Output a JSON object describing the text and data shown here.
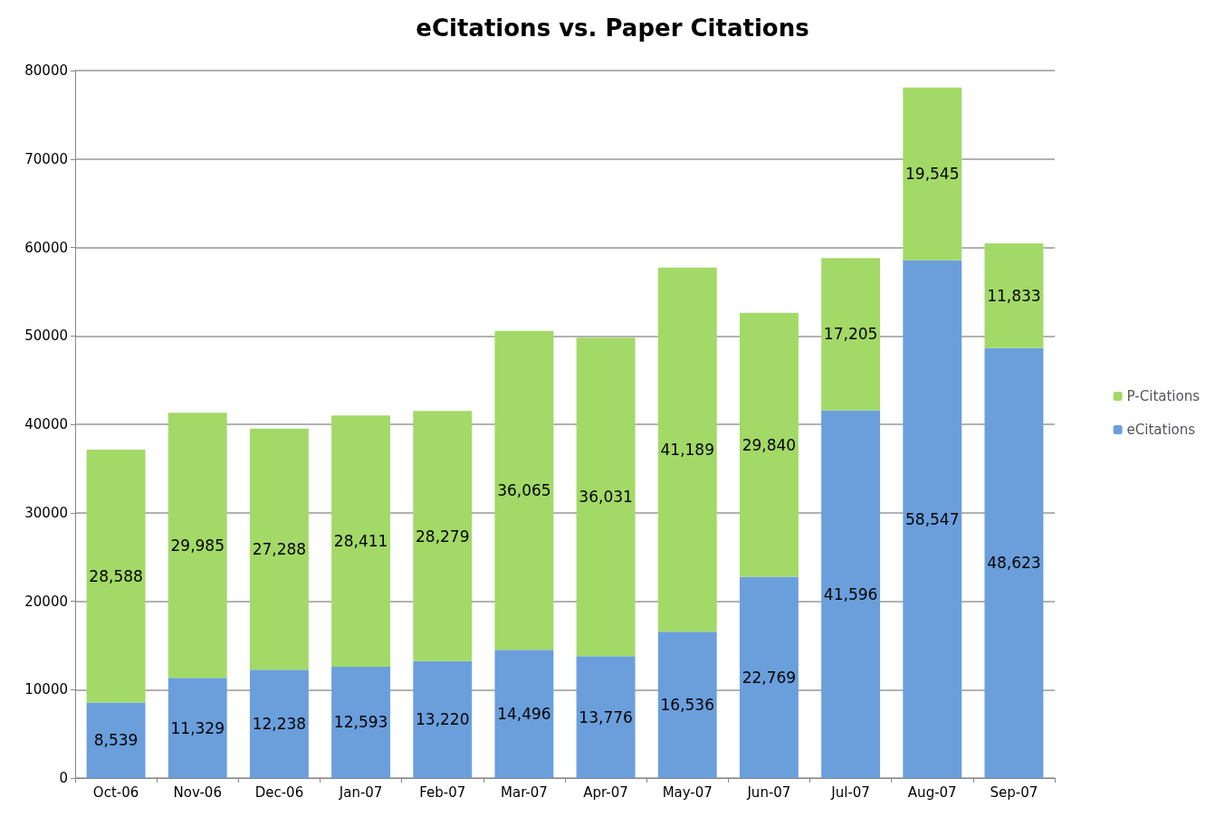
{
  "chart_data": {
    "type": "bar",
    "title": "eCitations vs. Paper Citations",
    "stacked": true,
    "categories": [
      "Oct-06",
      "Nov-06",
      "Dec-06",
      "Jan-07",
      "Feb-07",
      "Mar-07",
      "Apr-07",
      "May-07",
      "Jun-07",
      "Jul-07",
      "Aug-07",
      "Sep-07"
    ],
    "series": [
      {
        "name": "eCitations",
        "color": "#6a9fdc",
        "values": [
          8539,
          11329,
          12238,
          12593,
          13220,
          14496,
          13776,
          16536,
          22769,
          41596,
          58547,
          48623
        ],
        "value_labels": [
          "8,539",
          "11,329",
          "12,238",
          "12,593",
          "13,220",
          "14,496",
          "13,776",
          "16,536",
          "22,769",
          "41,596",
          "58,547",
          "48,623"
        ]
      },
      {
        "name": "P-Citations",
        "color": "#a3d967",
        "values": [
          28588,
          29985,
          27288,
          28411,
          28279,
          36065,
          36031,
          41189,
          29840,
          17205,
          19545,
          11833
        ],
        "value_labels": [
          "28,588",
          "29,985",
          "27,288",
          "28,411",
          "28,279",
          "36,065",
          "36,031",
          "41,189",
          "29,840",
          "17,205",
          "19,545",
          "11,833"
        ]
      }
    ],
    "ylim": [
      0,
      80000
    ],
    "yticks": [
      0,
      10000,
      20000,
      30000,
      40000,
      50000,
      60000,
      70000,
      80000
    ],
    "grid": "y",
    "legend": "right"
  }
}
